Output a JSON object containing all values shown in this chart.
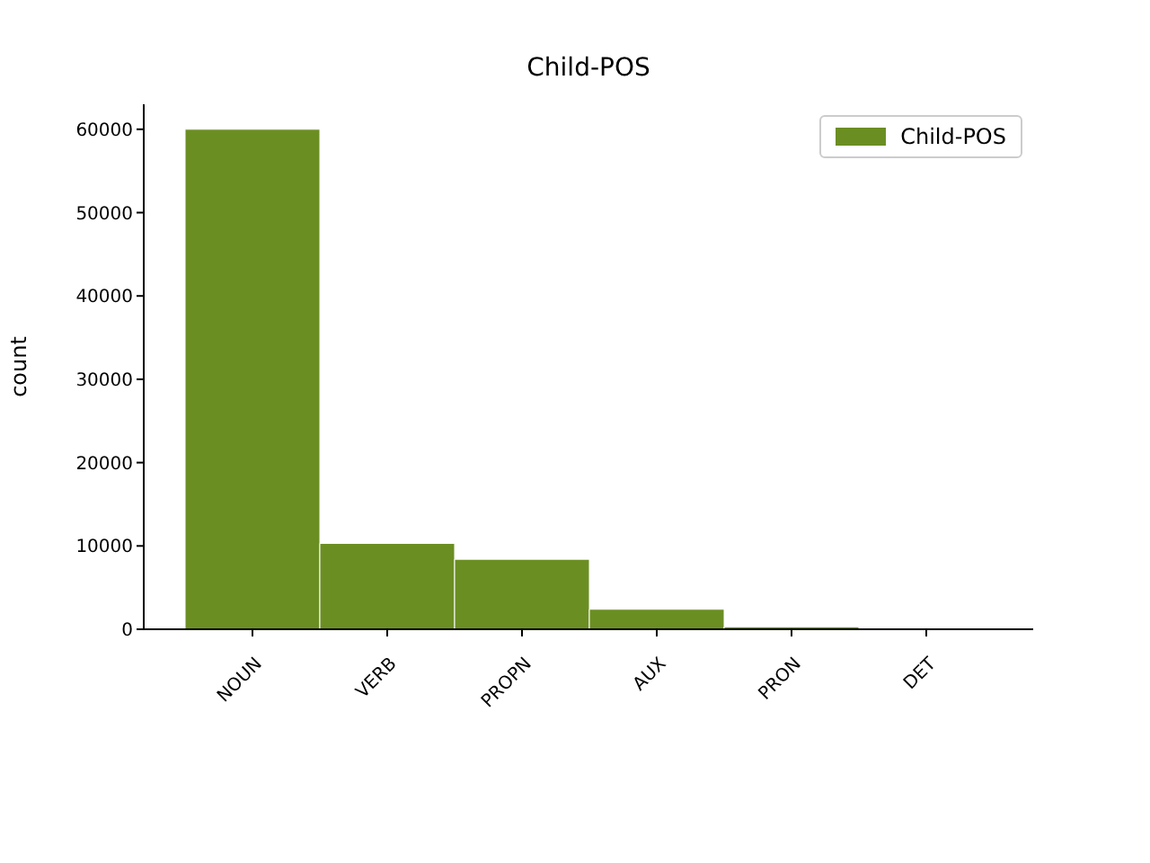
{
  "chart_data": {
    "type": "bar",
    "title": "Child-POS",
    "ylabel": "count",
    "categories": [
      "NOUN",
      "VERB",
      "PROPN",
      "AUX",
      "PRON",
      "DET"
    ],
    "series": [
      {
        "name": "Child-POS",
        "color": "#6b8e23",
        "values": [
          60000,
          10300,
          8400,
          2400,
          300,
          null
        ]
      }
    ],
    "ylim": [
      0,
      63000
    ],
    "yticks": [
      0,
      10000,
      20000,
      30000,
      40000,
      50000,
      60000
    ],
    "legend": "top right",
    "grid": false
  }
}
